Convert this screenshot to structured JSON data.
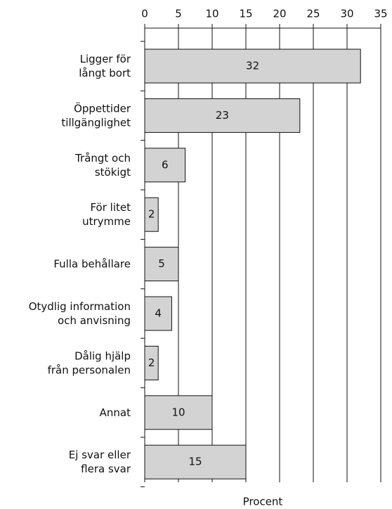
{
  "chart_data": {
    "type": "bar",
    "orientation": "horizontal",
    "categories": [
      "Ligger för\nlångt bort",
      "Öppettider\ntillgänglighet",
      "Trångt och\nstökigt",
      "För litet\nutrymme",
      "Fulla behållare",
      "Otydlig information\noch anvisning",
      "Dålig hjälp\nfrån personalen",
      "Annat",
      "Ej svar eller\nflera svar"
    ],
    "values": [
      32,
      23,
      6,
      2,
      5,
      4,
      2,
      10,
      15
    ],
    "color": "#d3d3d3",
    "xlabel": "Procent",
    "xlim": [
      0,
      35
    ],
    "xticks": [
      0,
      5,
      10,
      15,
      20,
      25,
      30,
      35
    ],
    "grid": true
  }
}
